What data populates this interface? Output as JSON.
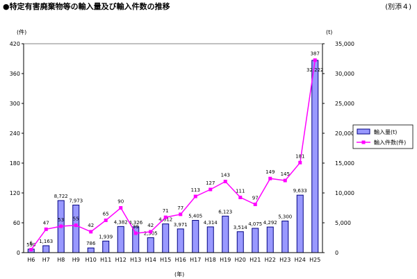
{
  "title": "●特定有害廃棄物等の輸入量及び輸入件数の推移",
  "note": "(別添４)",
  "chart_data": {
    "type": "bar+line",
    "categories": [
      "H6",
      "H7",
      "H8",
      "H9",
      "H10",
      "H11",
      "H12",
      "H13",
      "H14",
      "H15",
      "H16",
      "H17",
      "H18",
      "H19",
      "H20",
      "H21",
      "H22",
      "H23",
      "H24",
      "H25"
    ],
    "series": [
      {
        "name": "輸入量(t)",
        "type": "bar",
        "axis": "right",
        "values": [
          590,
          1163,
          8722,
          7973,
          786,
          1939,
          4382,
          4326,
          2505,
          4812,
          3971,
          5405,
          4314,
          6123,
          3514,
          4075,
          4292,
          5300,
          9633,
          32222
        ],
        "labels": [
          "590",
          "1,163",
          "8,722",
          "7,973",
          "786",
          "1,939",
          "4,382",
          "4,326",
          "2,505",
          "4,812",
          "3,971",
          "5,405",
          "4,314",
          "6,123",
          "3,514",
          "4,075",
          "4,292",
          "5,300",
          "9,633",
          "32,222"
        ]
      },
      {
        "name": "輸入件数(件)",
        "type": "line",
        "axis": "left",
        "values": [
          6,
          47,
          53,
          55,
          42,
          65,
          90,
          39,
          42,
          71,
          77,
          113,
          127,
          143,
          111,
          97,
          149,
          145,
          181,
          387
        ],
        "labels": [
          "6",
          "47",
          "53",
          "55",
          "42",
          "65",
          "90",
          "39",
          "42",
          "71",
          "77",
          "113",
          "127",
          "143",
          "111",
          "97",
          "149",
          "145",
          "181",
          "387"
        ]
      }
    ],
    "y_left": {
      "unit": "(件)",
      "min": 0,
      "max": 420,
      "ticks": [
        "0",
        "60",
        "120",
        "180",
        "240",
        "300",
        "360",
        "420"
      ]
    },
    "y_right": {
      "unit": "(t)",
      "min": 0,
      "max": 35000,
      "ticks": [
        "0",
        "5,000",
        "10,000",
        "15,000",
        "20,000",
        "25,000",
        "30,000",
        "35,000"
      ]
    },
    "xlabel": "(年)",
    "legend_position": "right",
    "colors": {
      "bar_fill": "#9999ff",
      "bar_stroke": "#000080",
      "line": "#ff00ff"
    }
  }
}
